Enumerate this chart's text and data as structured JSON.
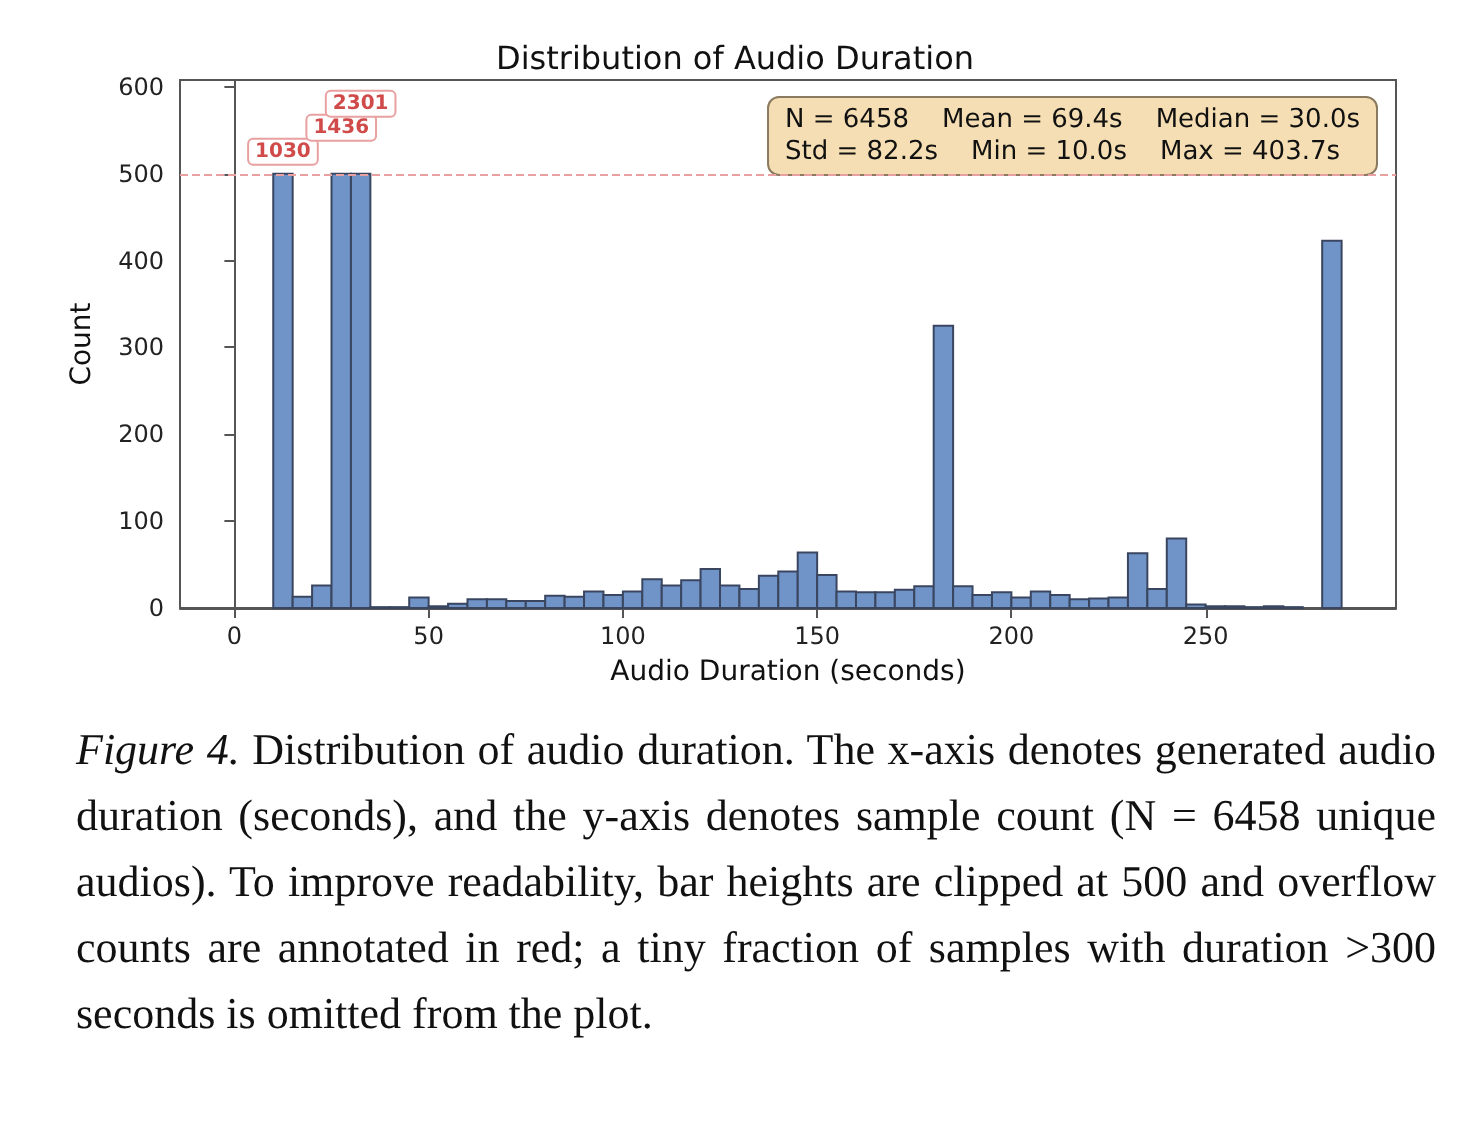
{
  "chart_data": {
    "type": "histogram",
    "title": "Distribution of Audio Duration",
    "xlabel": "Audio Duration (seconds)",
    "ylabel": "Count",
    "bins": [
      10,
      15,
      20,
      25,
      30,
      35,
      40,
      45,
      50,
      55,
      60,
      65,
      70,
      75,
      80,
      85,
      90,
      95,
      100,
      105,
      110,
      115,
      120,
      125,
      130,
      135,
      140,
      145,
      150,
      155,
      160,
      165,
      170,
      175,
      180,
      185,
      190,
      195,
      200,
      205,
      210,
      215,
      220,
      225,
      230,
      235,
      240,
      245,
      250,
      255,
      260,
      265,
      270,
      275,
      280,
      285
    ],
    "values": [
      500,
      13,
      26,
      500,
      500,
      1,
      1,
      12,
      2,
      5,
      10,
      10,
      8,
      8,
      14,
      13,
      19,
      15,
      19,
      33,
      26,
      32,
      45,
      26,
      22,
      37,
      42,
      64,
      38,
      19,
      18,
      18,
      21,
      25,
      325,
      25,
      15,
      18,
      12,
      19,
      15,
      10,
      11,
      12,
      63,
      22,
      80,
      4,
      2,
      2,
      1,
      2,
      1,
      0,
      423
    ],
    "color": "#7094c8",
    "xlim": [
      -14,
      299
    ],
    "xticks": [
      0,
      50,
      100,
      150,
      200,
      250
    ],
    "ylim": [
      0,
      608
    ],
    "yticks": [
      0,
      100,
      200,
      300,
      400,
      500,
      600
    ],
    "grid": false,
    "ref_lines": [
      {
        "axis": "y",
        "value": 500,
        "color": "#e8a0a0",
        "line_style": "dashed"
      }
    ],
    "annotations": [
      "N = 6458    Mean = 69.4s    Median = 30.0s\nStd = 82.2s    Min = 10.0s    Max = 403.7s",
      {
        "text": "1030",
        "x": 12.5,
        "y": 500
      },
      {
        "text": "1436",
        "x": 27.5,
        "y": 500
      },
      {
        "text": "2301",
        "x": 32.5,
        "y": 500
      },
      "Figure 4.  Distribution of audio duration.  The x-axis denotes generated audio duration (seconds), and the y-axis denotes sample count (N = 6458 unique audios).  To improve readability, bar heights are clipped at 500 and overflow counts are annotated in red; a tiny fraction of samples with duration >300 seconds is omitted from the plot."
    ]
  }
}
